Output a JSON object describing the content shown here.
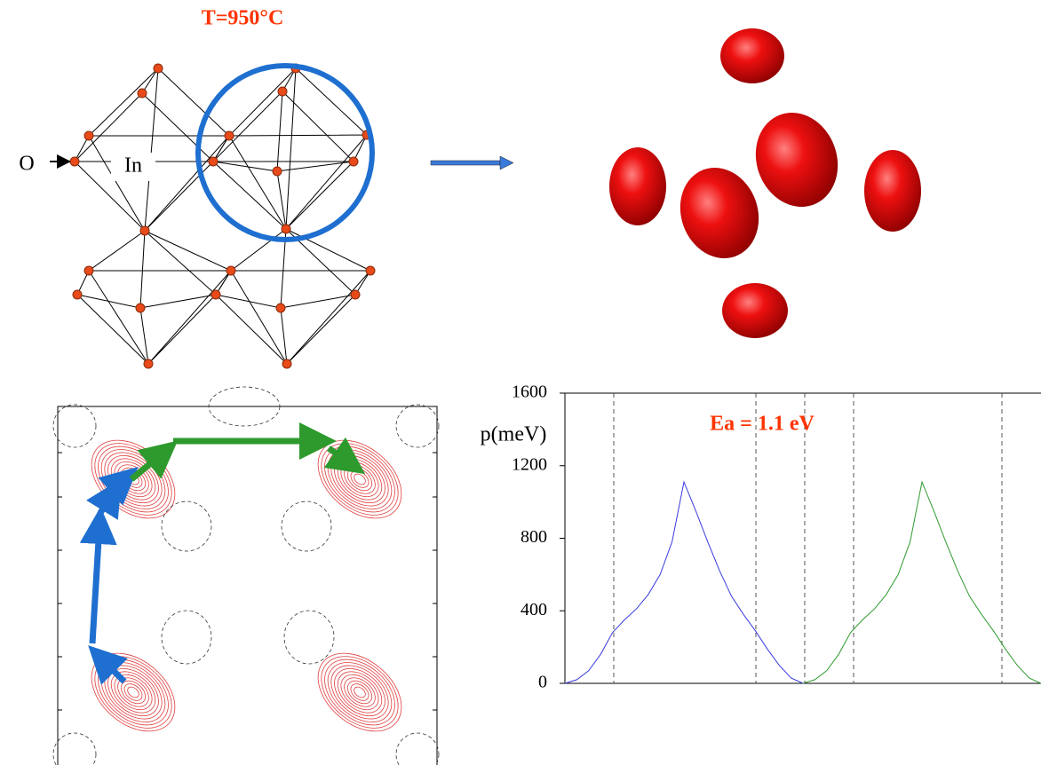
{
  "labels": {
    "temperature": "T=950°C",
    "oxygen": "O",
    "indium": "In"
  },
  "chart_data": {
    "type": "line",
    "annotation": "Ea = 1.1 eV",
    "y_label": "p(meV)",
    "categories": [
      null,
      null,
      null,
      null,
      null,
      null,
      null,
      null,
      null,
      null,
      null,
      null,
      null,
      null,
      null,
      null,
      null,
      null,
      null,
      null,
      null,
      null,
      null,
      null,
      null,
      null,
      null,
      null,
      null,
      null,
      null,
      null,
      null,
      null,
      null,
      null,
      null,
      null,
      null,
      null,
      null
    ],
    "series": [
      {
        "color": "#3a3ae0",
        "values": [
          0,
          20,
          70,
          160,
          280,
          350,
          410,
          490,
          600,
          780,
          1110,
          950,
          780,
          620,
          480,
          380,
          290,
          190,
          100,
          30,
          0,
          null,
          null,
          null,
          null,
          null,
          null,
          null,
          null,
          null,
          null,
          null,
          null,
          null,
          null,
          null,
          null,
          null,
          null,
          null,
          null
        ]
      },
      {
        "color": "#2f9a2f",
        "values": [
          null,
          null,
          null,
          null,
          null,
          null,
          null,
          null,
          null,
          null,
          null,
          null,
          null,
          null,
          null,
          null,
          null,
          null,
          null,
          null,
          0,
          20,
          70,
          160,
          280,
          350,
          410,
          490,
          600,
          780,
          1110,
          950,
          780,
          620,
          480,
          380,
          290,
          190,
          100,
          30,
          0
        ]
      }
    ],
    "ylim": [
      0,
      1600
    ],
    "yticks": [
      0,
      400,
      800,
      1200,
      1600
    ]
  }
}
